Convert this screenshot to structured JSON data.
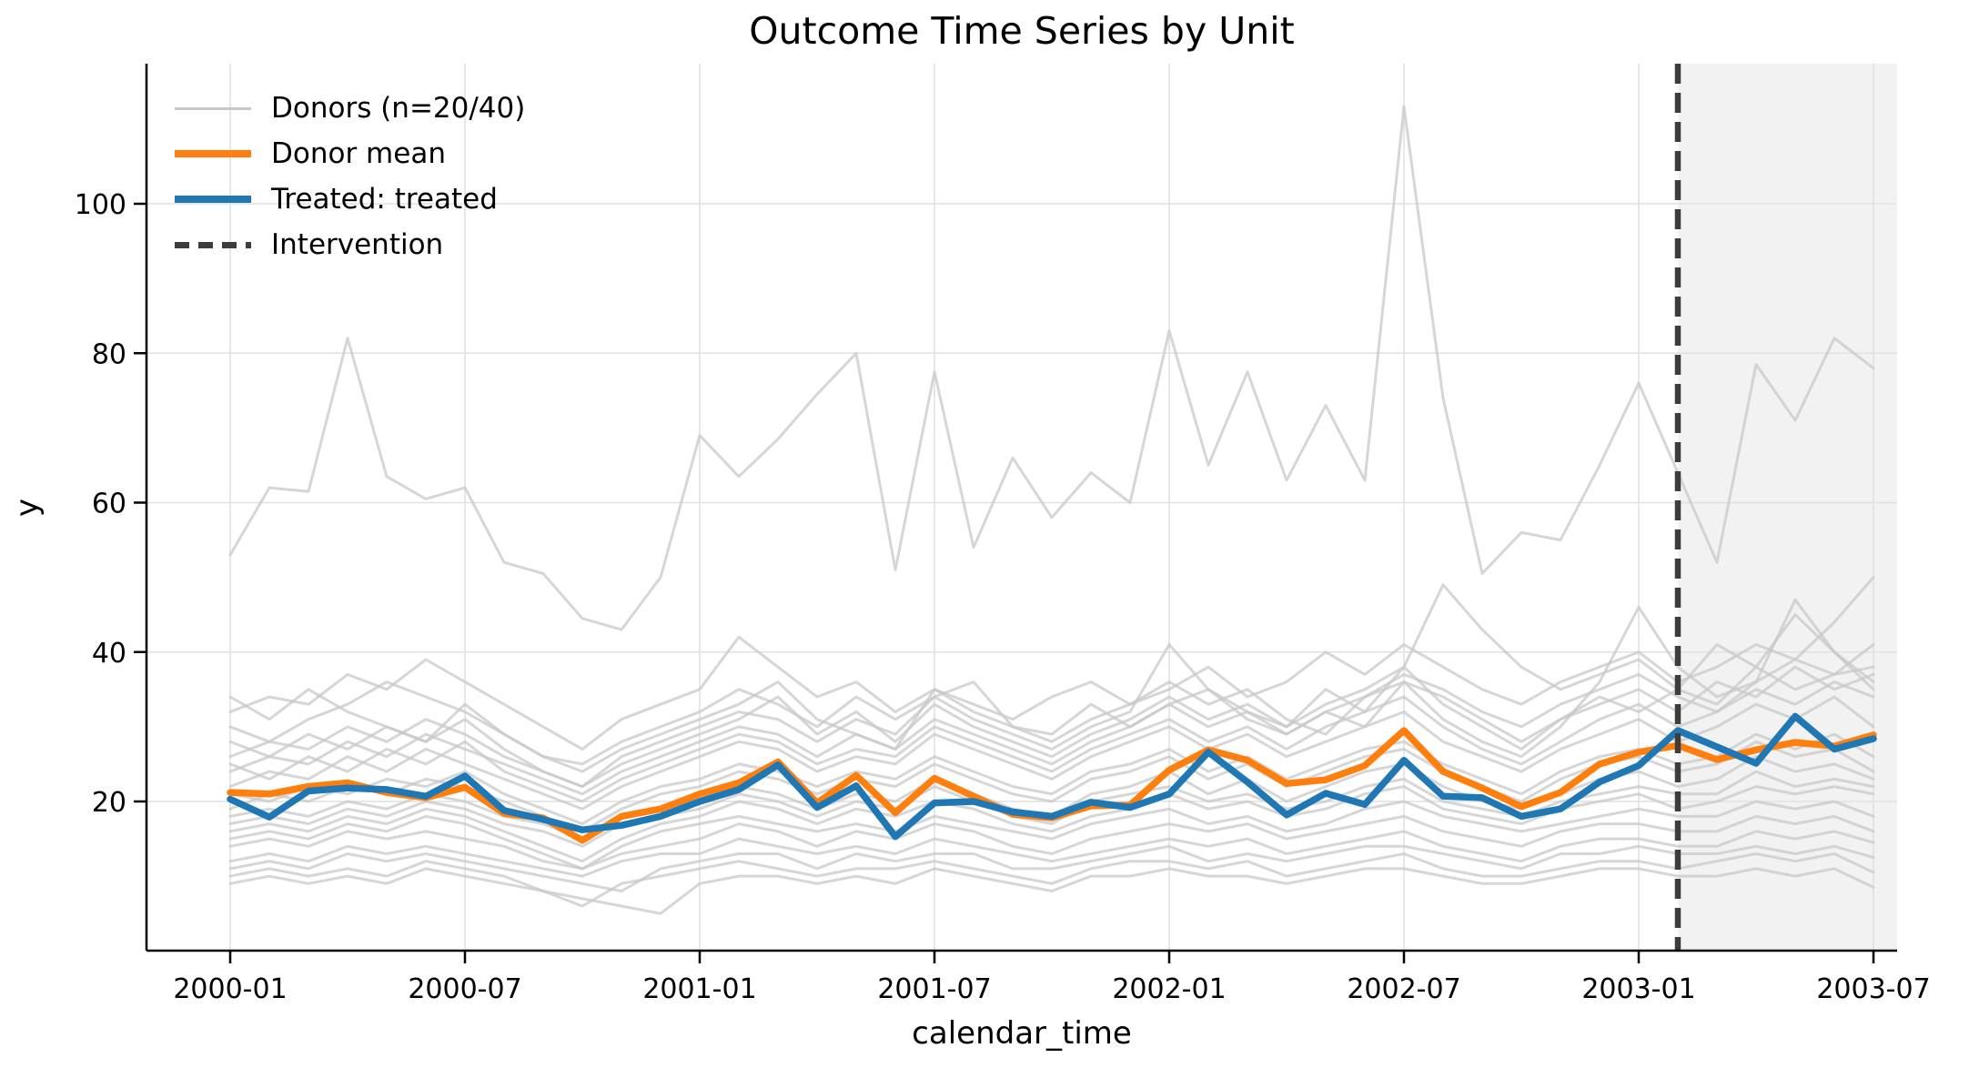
{
  "title": "Outcome Time Series by Unit",
  "axes": {
    "xlabel": "calendar_time",
    "ylabel": "y",
    "y_ticks": [
      20,
      40,
      60,
      80,
      100
    ],
    "x_tick_labels": [
      "2000-01",
      "2000-07",
      "2001-01",
      "2001-07",
      "2002-01",
      "2002-07",
      "2003-01",
      "2003-07"
    ],
    "x_tick_month_indices": [
      0,
      6,
      12,
      18,
      24,
      30,
      36,
      42
    ]
  },
  "legend": {
    "items": [
      {
        "label": "Donors (n=20/40)",
        "style": "donors"
      },
      {
        "label": "Donor mean",
        "style": "donor_mean"
      },
      {
        "label": "Treated: treated",
        "style": "treated"
      },
      {
        "label": "Intervention",
        "style": "intervention"
      }
    ]
  },
  "colors": {
    "treated": "#1f77b4",
    "donor_mean": "#ff7f0e",
    "donors": "#c8c8c8",
    "intervention_line": "#3d3d3d",
    "grid": "#e1e1e1",
    "post_period_shade": "#f2f2f2",
    "spine": "#000000"
  },
  "chart_data": {
    "type": "line",
    "title": "Outcome Time Series by Unit",
    "xlabel": "calendar_time",
    "ylabel": "y",
    "grid": true,
    "legend_position": "upper left",
    "ylim": [
      0,
      118.7
    ],
    "xlim_months": [
      -2.14,
      42.6
    ],
    "x": [
      "2000-01",
      "2000-02",
      "2000-03",
      "2000-04",
      "2000-05",
      "2000-06",
      "2000-07",
      "2000-08",
      "2000-09",
      "2000-10",
      "2000-11",
      "2000-12",
      "2001-01",
      "2001-02",
      "2001-03",
      "2001-04",
      "2001-05",
      "2001-06",
      "2001-07",
      "2001-08",
      "2001-09",
      "2001-10",
      "2001-11",
      "2001-12",
      "2002-01",
      "2002-02",
      "2002-03",
      "2002-04",
      "2002-05",
      "2002-06",
      "2002-07",
      "2002-08",
      "2002-09",
      "2002-10",
      "2002-11",
      "2002-12",
      "2003-01",
      "2003-02",
      "2003-03",
      "2003-04",
      "2003-05",
      "2003-06",
      "2003-07"
    ],
    "intervention": {
      "label": "Intervention",
      "x": "2003-02",
      "month_index": 37
    },
    "shaded_region": {
      "from_month_index": 37,
      "to": "right-edge"
    },
    "series": [
      {
        "name": "Treated: treated",
        "role": "treated",
        "color": "#1f77b4",
        "values": [
          20.3,
          17.9,
          21.4,
          21.8,
          21.6,
          20.7,
          23.4,
          18.8,
          17.6,
          16.2,
          16.8,
          18,
          20,
          21.6,
          24.9,
          19.2,
          22.1,
          15.3,
          19.8,
          20,
          18.6,
          18,
          19.9,
          19.2,
          21,
          26.6,
          22.6,
          18.2,
          21.1,
          19.6,
          25.5,
          20.7,
          20.5,
          18,
          19,
          22.6,
          24.8,
          29.5,
          27.3,
          25.1,
          31.4,
          27,
          28.4
        ]
      },
      {
        "name": "Donor mean",
        "role": "donor_mean",
        "color": "#ff7f0e",
        "values": [
          21.2,
          21,
          22,
          22.5,
          21.2,
          20.5,
          21.9,
          18.4,
          17.8,
          14.8,
          18,
          19,
          21,
          22.5,
          25.3,
          19.8,
          23.5,
          18.5,
          23.1,
          20.7,
          18.3,
          17.8,
          19.4,
          19.5,
          24.2,
          26.9,
          25.5,
          22.4,
          22.9,
          24.8,
          29.5,
          24,
          21.8,
          19.3,
          21.2,
          25,
          26.6,
          27.5,
          25.6,
          26.9,
          27.9,
          27.4,
          28.9
        ]
      }
    ],
    "donors": {
      "name": "Donors (n=20/40)",
      "count_shown": 20,
      "count_total": 40,
      "color": "#c8c8c8",
      "series": [
        [
          53,
          62,
          61.5,
          82,
          63.5,
          60.5,
          62,
          52,
          50.5,
          44.5,
          43,
          50,
          69,
          63.5,
          68.5,
          74.5,
          80,
          51,
          77.5,
          54,
          66,
          58,
          64,
          60,
          83,
          65,
          77.5,
          63,
          73,
          63,
          113,
          74,
          50.5,
          56,
          55,
          65,
          76,
          64,
          52,
          78.5,
          71,
          82,
          78
        ],
        [
          32,
          34,
          33,
          37,
          35,
          39,
          36,
          33,
          30,
          27,
          31,
          33,
          35,
          42,
          38,
          34,
          36,
          32,
          35,
          33,
          31,
          34,
          36,
          33,
          35,
          38,
          34,
          36,
          40,
          37,
          41,
          38,
          35,
          33,
          36,
          38,
          40,
          36,
          38,
          41,
          39,
          44,
          50
        ],
        [
          30,
          28,
          31,
          33,
          36,
          34,
          32,
          29,
          26,
          25,
          28,
          30,
          32,
          35,
          33,
          30,
          34,
          31,
          34,
          36,
          30,
          28,
          31,
          33,
          36,
          33,
          35,
          31,
          29,
          34,
          37,
          35,
          32,
          30,
          33,
          35,
          37,
          34,
          32,
          36,
          39,
          37,
          41
        ],
        [
          34,
          31,
          35,
          32,
          30,
          28,
          33,
          29,
          26,
          24,
          27,
          29,
          31,
          33,
          36,
          31,
          29,
          27,
          35,
          32,
          30,
          29,
          33,
          30,
          33,
          35,
          31,
          29,
          32,
          30,
          36,
          34,
          31,
          28,
          31,
          34,
          32,
          35,
          33,
          38,
          35,
          37,
          38
        ],
        [
          26,
          28,
          27,
          30,
          28,
          31,
          29,
          26,
          24,
          22,
          26,
          28,
          30,
          32,
          31,
          28,
          31,
          29,
          34,
          31,
          29,
          27,
          30,
          32,
          41,
          35,
          32,
          30,
          33,
          35,
          38,
          33,
          30,
          27,
          31,
          33,
          35,
          32,
          36,
          34,
          38,
          35,
          37
        ],
        [
          24,
          26,
          25,
          28,
          26,
          29,
          27,
          25,
          23,
          21,
          24,
          26,
          28,
          30,
          29,
          26,
          29,
          27,
          31,
          29,
          27,
          25,
          28,
          30,
          33,
          30,
          32,
          29,
          32,
          34,
          36,
          31,
          28,
          26,
          30,
          36,
          46,
          38,
          34,
          36,
          47,
          40,
          35
        ],
        [
          25,
          23,
          26,
          24,
          27,
          25,
          28,
          24,
          22,
          20,
          23,
          25,
          27,
          29,
          28,
          25,
          27,
          26,
          30,
          28,
          26,
          24,
          27,
          29,
          31,
          28,
          30,
          27,
          30,
          32,
          34,
          30,
          27,
          25,
          28,
          31,
          33,
          30,
          32,
          35,
          33,
          36,
          34
        ],
        [
          22,
          24,
          23,
          26,
          24,
          27,
          25,
          23,
          21,
          19,
          22,
          24,
          26,
          28,
          27,
          24,
          26,
          25,
          29,
          27,
          25,
          23,
          26,
          28,
          30,
          27,
          29,
          26,
          28,
          30,
          32,
          28,
          26,
          24,
          27,
          29,
          31,
          28,
          30,
          33,
          31,
          34,
          30
        ],
        [
          21,
          20,
          22,
          21,
          23,
          22,
          24,
          21,
          19,
          17,
          20,
          22,
          23,
          25,
          24,
          22,
          24,
          23,
          26,
          24,
          22,
          21,
          24,
          25,
          27,
          24,
          26,
          23,
          25,
          27,
          28,
          25,
          23,
          21,
          24,
          26,
          27,
          25,
          26,
          29,
          27,
          29,
          26
        ],
        [
          19,
          21,
          20,
          22,
          21,
          23,
          22,
          20,
          18,
          16,
          19,
          21,
          22,
          24,
          23,
          21,
          23,
          22,
          25,
          23,
          21,
          20,
          23,
          24,
          26,
          23,
          25,
          22,
          24,
          26,
          27,
          24,
          22,
          20,
          23,
          25,
          26,
          24,
          25,
          28,
          26,
          27,
          24
        ],
        [
          18,
          19,
          18,
          20,
          19,
          21,
          20,
          18,
          17,
          15,
          18,
          19,
          20,
          22,
          21,
          19,
          21,
          20,
          23,
          21,
          19,
          18,
          21,
          22,
          24,
          21,
          23,
          20,
          22,
          24,
          25,
          22,
          20,
          19,
          21,
          23,
          24,
          22,
          23,
          26,
          24,
          25,
          23
        ],
        [
          17,
          18,
          17,
          19,
          18,
          20,
          19,
          17,
          16,
          14,
          17,
          18,
          19,
          21,
          20,
          18,
          20,
          19,
          22,
          20,
          18,
          17,
          20,
          21,
          22,
          20,
          21,
          19,
          20,
          22,
          23,
          20,
          19,
          18,
          20,
          21,
          22,
          21,
          21,
          24,
          22,
          23,
          22
        ],
        [
          16,
          17,
          16,
          18,
          17,
          19,
          18,
          16,
          14,
          12,
          15,
          17,
          18,
          20,
          19,
          17,
          19,
          18,
          20,
          19,
          17,
          16,
          18,
          19,
          21,
          19,
          20,
          18,
          19,
          21,
          22,
          19,
          18,
          17,
          19,
          20,
          21,
          19,
          20,
          22,
          21,
          22,
          21
        ],
        [
          15,
          16,
          15,
          17,
          16,
          18,
          17,
          15,
          13,
          11,
          14,
          16,
          17,
          18,
          17,
          16,
          17,
          16,
          18,
          17,
          16,
          15,
          17,
          18,
          19,
          17,
          18,
          16,
          17,
          19,
          20,
          18,
          17,
          16,
          17,
          18,
          19,
          18,
          18,
          20,
          19,
          20,
          18
        ],
        [
          14,
          15,
          14,
          16,
          15,
          16,
          15,
          14,
          12,
          11,
          13,
          14,
          15,
          17,
          16,
          14,
          16,
          15,
          17,
          16,
          14,
          13,
          15,
          16,
          17,
          16,
          17,
          15,
          16,
          17,
          18,
          16,
          15,
          14,
          16,
          17,
          17,
          16,
          16,
          18,
          17,
          18,
          16
        ],
        [
          12,
          13,
          12,
          14,
          13,
          14,
          13,
          12,
          11,
          10,
          12,
          13,
          13,
          15,
          14,
          13,
          14,
          13,
          15,
          14,
          13,
          12,
          13,
          14,
          15,
          14,
          15,
          13,
          14,
          15,
          16,
          14,
          13,
          12,
          14,
          15,
          15,
          14,
          14,
          16,
          15,
          16,
          14.5
        ],
        [
          11,
          12,
          11,
          13,
          12,
          13,
          12,
          11,
          10,
          9,
          8,
          11,
          12,
          13,
          13,
          11,
          13,
          12,
          13,
          13,
          11,
          11,
          12,
          13,
          14,
          12,
          13,
          12,
          13,
          14,
          14,
          13,
          12,
          11,
          13,
          13,
          14,
          13,
          13,
          14,
          13,
          14,
          12.5
        ],
        [
          10,
          11,
          10,
          11,
          10,
          12,
          11,
          10,
          8,
          6,
          9,
          10,
          11,
          12,
          11,
          10,
          11,
          11,
          12,
          11,
          10,
          9,
          11,
          12,
          12,
          11,
          12,
          10,
          11,
          12,
          13,
          11,
          10,
          10,
          11,
          12,
          12,
          11,
          12,
          13,
          12,
          13,
          10.5
        ],
        [
          9,
          10,
          9,
          10,
          9,
          11,
          10,
          9,
          8,
          7,
          6,
          5,
          9,
          10,
          10,
          9,
          10,
          9,
          11,
          10,
          9,
          8,
          10,
          10,
          11,
          10,
          10,
          9,
          10,
          11,
          11,
          10,
          9,
          9,
          10,
          11,
          11,
          10,
          10,
          11,
          10,
          11,
          8.5
        ],
        [
          28,
          26,
          29,
          27,
          30,
          28,
          31,
          27,
          24,
          22,
          25,
          27,
          29,
          31,
          34,
          29,
          32,
          28,
          33,
          30,
          28,
          26,
          29,
          31,
          34,
          31,
          33,
          30,
          35,
          32,
          38,
          49,
          43,
          38,
          35,
          37,
          39,
          35,
          41,
          38,
          45,
          40,
          36
        ]
      ]
    }
  }
}
